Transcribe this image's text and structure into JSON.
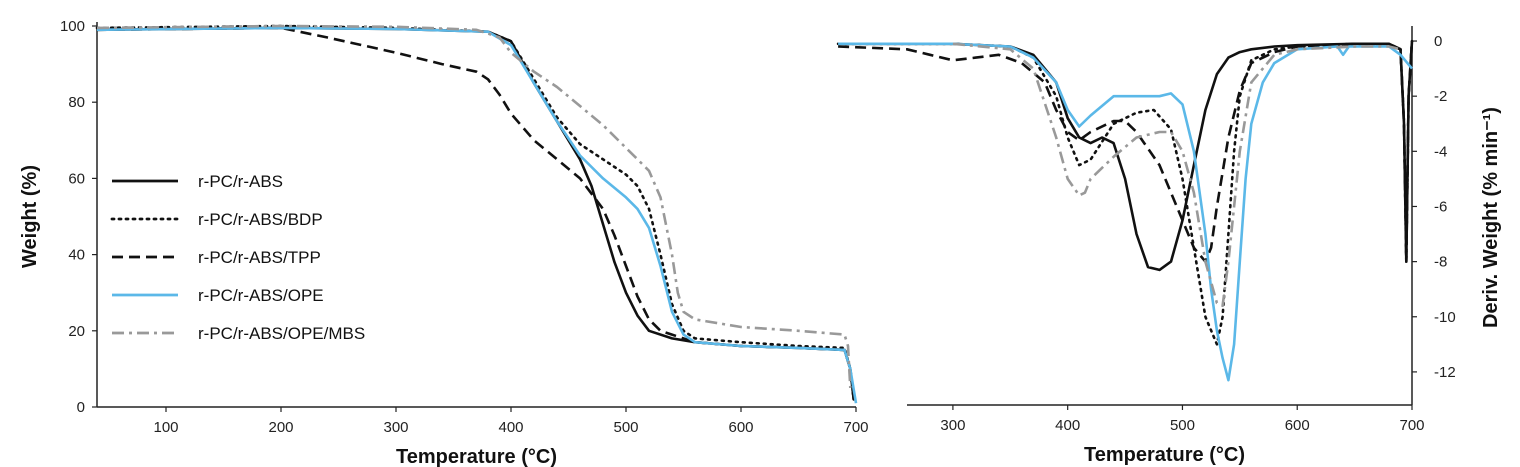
{
  "chart_data": [
    {
      "type": "line",
      "xlabel": "Temperature (°C)",
      "ylabel": "Weight (%)",
      "xlim": [
        40,
        700
      ],
      "ylim": [
        0,
        100
      ],
      "x_ticks": [
        100,
        200,
        300,
        400,
        500,
        600,
        700
      ],
      "y_ticks": [
        0,
        20,
        40,
        60,
        80,
        100
      ],
      "legend_position": "left",
      "series": [
        {
          "name": "r-PC/r-ABS",
          "color": "#111111",
          "style": "solid",
          "x": [
            40,
            200,
            300,
            380,
            400,
            420,
            440,
            460,
            470,
            480,
            490,
            500,
            510,
            520,
            540,
            560,
            600,
            650,
            690,
            695,
            698
          ],
          "y": [
            99,
            99.5,
            99.2,
            98.5,
            96,
            85,
            75,
            65,
            58,
            48,
            38,
            30,
            24,
            20,
            18,
            17,
            16,
            15.5,
            15,
            10,
            2
          ]
        },
        {
          "name": "r-PC/r-ABS/BDP",
          "color": "#111111",
          "style": "dotted",
          "x": [
            40,
            200,
            300,
            380,
            400,
            420,
            440,
            460,
            480,
            500,
            510,
            520,
            530,
            540,
            550,
            560,
            600,
            650,
            690,
            695,
            698
          ],
          "y": [
            99.5,
            100,
            99.5,
            98.5,
            96,
            86,
            76,
            69,
            65,
            61,
            58,
            52,
            40,
            27,
            20,
            18,
            17,
            16,
            15.5,
            10,
            2
          ]
        },
        {
          "name": "r-PC/r-ABS/TPP",
          "color": "#111111",
          "style": "dashed",
          "x": [
            40,
            200,
            240,
            300,
            340,
            370,
            380,
            390,
            400,
            420,
            440,
            460,
            480,
            490,
            500,
            510,
            520,
            530,
            540,
            560,
            600,
            650,
            690,
            695,
            698
          ],
          "y": [
            99,
            99.5,
            97,
            93,
            90,
            88,
            86,
            82,
            77,
            70,
            65,
            60,
            52,
            45,
            37,
            29,
            23,
            20,
            19,
            17,
            16,
            15.5,
            15,
            10,
            2
          ]
        },
        {
          "name": "r-PC/r-ABS/OPE",
          "color": "#5bb8e8",
          "style": "solid",
          "x": [
            40,
            200,
            300,
            380,
            400,
            420,
            440,
            460,
            480,
            500,
            510,
            520,
            530,
            540,
            550,
            560,
            600,
            650,
            690,
            695,
            700
          ],
          "y": [
            99,
            99.5,
            99.2,
            98.5,
            95,
            85,
            75,
            66,
            60,
            55,
            52,
            47,
            37,
            25,
            19,
            17,
            16,
            15.5,
            15,
            10,
            1
          ]
        },
        {
          "name": "r-PC/r-ABS/OPE/MBS",
          "color": "#999999",
          "style": "dashdot",
          "x": [
            40,
            200,
            300,
            370,
            390,
            400,
            420,
            440,
            460,
            480,
            500,
            510,
            520,
            530,
            540,
            545,
            550,
            560,
            600,
            650,
            690,
            693,
            695
          ],
          "y": [
            99.5,
            100,
            99.8,
            99,
            97,
            93,
            88,
            84,
            79,
            74,
            68,
            65,
            62,
            55,
            40,
            30,
            25,
            23,
            21,
            20,
            19,
            16,
            5
          ]
        }
      ]
    },
    {
      "type": "line",
      "xlabel": "Temperature (°C)",
      "ylabel": "Deriv. Weight (% min⁻¹)",
      "xlim": [
        260,
        700
      ],
      "ylim": [
        -13.2,
        0.4
      ],
      "x_ticks": [
        300,
        400,
        500,
        600,
        700
      ],
      "y_ticks": [
        0,
        -2,
        -4,
        -6,
        -8,
        -10,
        -12
      ],
      "series": [
        {
          "name": "r-PC/r-ABS",
          "color": "#111111",
          "style": "solid",
          "x": [
            200,
            300,
            350,
            370,
            390,
            400,
            410,
            420,
            430,
            440,
            450,
            460,
            470,
            480,
            490,
            500,
            510,
            520,
            530,
            540,
            550,
            560,
            580,
            600,
            650,
            680,
            690,
            693,
            695,
            697,
            700
          ],
          "y": [
            -0.1,
            -0.1,
            -0.2,
            -0.5,
            -1.5,
            -2.8,
            -3.5,
            -3.7,
            -3.5,
            -3.7,
            -5,
            -7,
            -8.2,
            -8.3,
            -8,
            -6.5,
            -4.5,
            -2.5,
            -1.2,
            -0.6,
            -0.4,
            -0.3,
            -0.2,
            -0.15,
            -0.1,
            -0.1,
            -0.3,
            -3,
            -8,
            -2,
            0
          ]
        },
        {
          "name": "r-PC/r-ABS/BDP",
          "color": "#111111",
          "style": "dotted",
          "x": [
            200,
            300,
            350,
            370,
            390,
            400,
            410,
            420,
            440,
            460,
            475,
            490,
            500,
            510,
            520,
            530,
            535,
            540,
            545,
            550,
            560,
            580,
            600,
            650,
            680,
            690,
            693,
            695,
            697,
            700
          ],
          "y": [
            -0.1,
            -0.1,
            -0.2,
            -0.6,
            -2,
            -3.5,
            -4.5,
            -4.3,
            -3,
            -2.6,
            -2.5,
            -3.2,
            -5,
            -7.5,
            -10,
            -11,
            -10,
            -7,
            -4,
            -2,
            -0.7,
            -0.3,
            -0.2,
            -0.1,
            -0.1,
            -0.3,
            -3,
            -8,
            -2,
            0
          ]
        },
        {
          "name": "r-PC/r-ABS/TPP",
          "color": "#111111",
          "style": "dashed",
          "x": [
            200,
            260,
            280,
            300,
            320,
            340,
            360,
            380,
            390,
            400,
            410,
            420,
            440,
            450,
            460,
            480,
            500,
            510,
            520,
            525,
            530,
            540,
            550,
            560,
            580,
            600,
            650,
            680,
            690,
            693,
            695,
            697,
            700
          ],
          "y": [
            -0.2,
            -0.3,
            -0.5,
            -0.7,
            -0.6,
            -0.5,
            -0.8,
            -1.5,
            -2.5,
            -3.3,
            -3.6,
            -3.3,
            -2.9,
            -2.9,
            -3.3,
            -4.5,
            -6.5,
            -7.5,
            -8,
            -7.5,
            -6,
            -3.5,
            -1.8,
            -0.8,
            -0.4,
            -0.2,
            -0.1,
            -0.1,
            -0.3,
            -3,
            -8,
            -2,
            0
          ]
        },
        {
          "name": "r-PC/r-ABS/OPE",
          "color": "#5bb8e8",
          "style": "solid",
          "x": [
            200,
            300,
            350,
            370,
            390,
            400,
            410,
            420,
            440,
            460,
            480,
            490,
            500,
            510,
            520,
            525,
            530,
            535,
            540,
            545,
            550,
            555,
            560,
            570,
            580,
            600,
            635,
            640,
            645,
            650,
            680,
            690,
            700
          ],
          "y": [
            -0.1,
            -0.1,
            -0.2,
            -0.6,
            -1.5,
            -2.5,
            -3.1,
            -2.7,
            -2,
            -2,
            -2,
            -1.9,
            -2.3,
            -4,
            -7,
            -9,
            -10.5,
            -11.5,
            -12.3,
            -11,
            -8,
            -5,
            -3,
            -1.5,
            -0.8,
            -0.3,
            -0.2,
            -0.5,
            -0.2,
            -0.2,
            -0.2,
            -0.5,
            -1
          ]
        },
        {
          "name": "r-PC/r-ABS/OPE/MBS",
          "color": "#999999",
          "style": "dashdot",
          "x": [
            300,
            350,
            370,
            390,
            400,
            410,
            415,
            420,
            440,
            460,
            480,
            490,
            500,
            510,
            520,
            530,
            535,
            540,
            550,
            560,
            580,
            600,
            650,
            680,
            690
          ],
          "y": [
            -0.1,
            -0.3,
            -1,
            -3.5,
            -5,
            -5.6,
            -5.5,
            -5,
            -4.2,
            -3.5,
            -3.3,
            -3.3,
            -4,
            -5.5,
            -8,
            -9.5,
            -9.6,
            -8,
            -4,
            -1.5,
            -0.5,
            -0.3,
            -0.2,
            -0.2,
            -0.3
          ]
        }
      ]
    }
  ]
}
